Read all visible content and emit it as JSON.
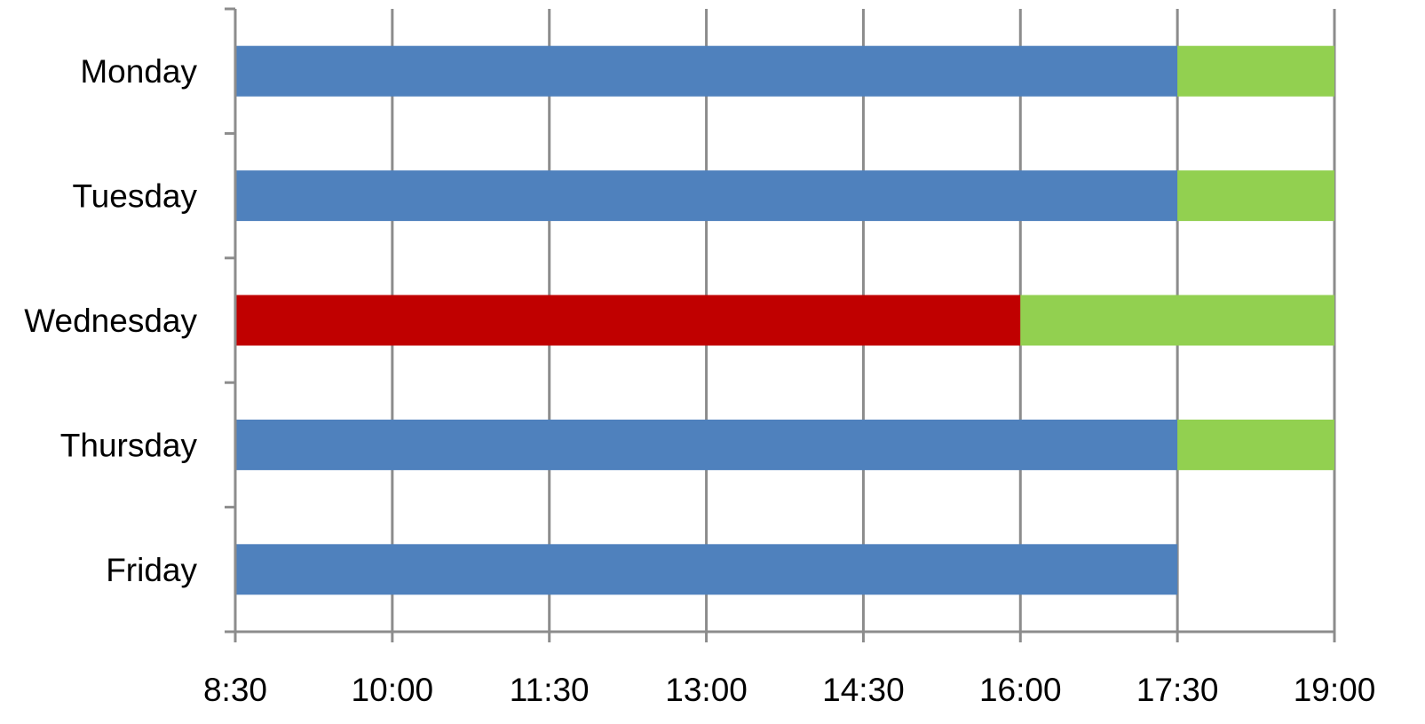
{
  "chart_data": {
    "type": "bar",
    "orientation": "horizontal-stacked-timeline",
    "title": "",
    "xlabel": "",
    "ylabel": "",
    "x_axis": {
      "range": [
        "8:30",
        "19:00"
      ],
      "ticks": [
        "8:30",
        "10:00",
        "11:30",
        "13:00",
        "14:30",
        "16:00",
        "17:30",
        "19:00"
      ]
    },
    "grid": "vertical",
    "legend": "none",
    "categories": [
      "Monday",
      "Tuesday",
      "Wednesday",
      "Thursday",
      "Friday"
    ],
    "bars": [
      {
        "day": "Monday",
        "segments": [
          {
            "start": "8:30",
            "end": "17:30",
            "color": "#4F81BD"
          },
          {
            "start": "17:30",
            "end": "19:00",
            "color": "#92D050"
          }
        ]
      },
      {
        "day": "Tuesday",
        "segments": [
          {
            "start": "8:30",
            "end": "17:30",
            "color": "#4F81BD"
          },
          {
            "start": "17:30",
            "end": "19:00",
            "color": "#92D050"
          }
        ]
      },
      {
        "day": "Wednesday",
        "segments": [
          {
            "start": "8:30",
            "end": "16:00",
            "color": "#C00000"
          },
          {
            "start": "16:00",
            "end": "19:00",
            "color": "#92D050"
          }
        ]
      },
      {
        "day": "Thursday",
        "segments": [
          {
            "start": "8:30",
            "end": "17:30",
            "color": "#4F81BD"
          },
          {
            "start": "17:30",
            "end": "19:00",
            "color": "#92D050"
          }
        ]
      },
      {
        "day": "Friday",
        "segments": [
          {
            "start": "8:30",
            "end": "17:30",
            "color": "#4F81BD"
          }
        ]
      }
    ],
    "colors": {
      "work": "#4F81BD",
      "short_day": "#C00000",
      "free": "#92D050",
      "grid": "#8C8C8C"
    }
  }
}
